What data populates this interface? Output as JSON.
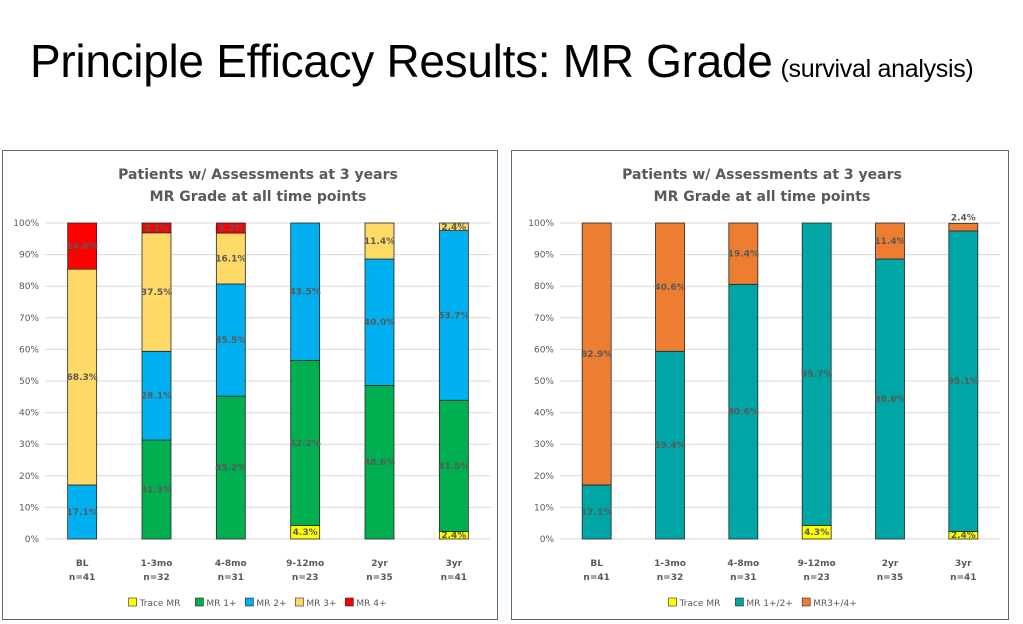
{
  "slide": {
    "title": "Principle Efficacy Results: MR Grade",
    "subtitle": "(survival analysis)"
  },
  "chart_data": [
    {
      "type": "bar",
      "stacked": true,
      "title": [
        "Patients w/ Assessments at 3 years",
        "MR Grade at all time points"
      ],
      "ylim": [
        0,
        100
      ],
      "yticks": [
        "0%",
        "10%",
        "20%",
        "30%",
        "40%",
        "50%",
        "60%",
        "70%",
        "80%",
        "90%",
        "100%"
      ],
      "categories": [
        [
          "BL",
          "n=41"
        ],
        [
          "1-3mo",
          "n=32"
        ],
        [
          "4-8mo",
          "n=31"
        ],
        [
          "9-12mo",
          "n=23"
        ],
        [
          "2yr",
          "n=35"
        ],
        [
          "3yr",
          "n=41"
        ]
      ],
      "grid": true,
      "legend_position": "bottom",
      "series": [
        {
          "name": "Trace MR",
          "color": "#ffff00",
          "values": [
            0,
            0,
            0,
            4.3,
            0,
            2.4
          ],
          "labels": [
            "",
            "",
            "",
            "4.3%",
            "",
            "2.4%"
          ]
        },
        {
          "name": "MR 1+",
          "color": "#00b050",
          "values": [
            0,
            31.3,
            45.2,
            52.2,
            48.6,
            41.5
          ],
          "labels": [
            "",
            "31.3%",
            "45.2%",
            "52.2%",
            "48.6%",
            "41.5%"
          ]
        },
        {
          "name": "MR 2+",
          "color": "#00b0f0",
          "values": [
            17.1,
            28.1,
            35.5,
            43.5,
            40.0,
            53.7
          ],
          "labels": [
            "17.1%",
            "28.1%",
            "35.5%",
            "43.5%",
            "40.0%",
            "53.7%"
          ]
        },
        {
          "name": "MR 3+",
          "color": "#ffd966",
          "values": [
            68.3,
            37.5,
            16.1,
            0,
            11.4,
            2.4
          ],
          "labels": [
            "68.3%",
            "37.5%",
            "16.1%",
            "",
            "11.4%",
            "2.4%"
          ]
        },
        {
          "name": "MR 4+",
          "color": "#ff0000",
          "values": [
            14.6,
            3.1,
            3.2,
            0,
            0,
            0
          ],
          "labels": [
            "14.6%",
            "3.1%",
            "3.2%",
            "",
            "",
            ""
          ]
        }
      ]
    },
    {
      "type": "bar",
      "stacked": true,
      "title": [
        "Patients w/ Assessments at 3 years",
        "MR Grade at all time points"
      ],
      "ylim": [
        0,
        100
      ],
      "yticks": [
        "0%",
        "10%",
        "20%",
        "30%",
        "40%",
        "50%",
        "60%",
        "70%",
        "80%",
        "90%",
        "100%"
      ],
      "categories": [
        [
          "BL",
          "n=41"
        ],
        [
          "1-3mo",
          "n=32"
        ],
        [
          "4-8mo",
          "n=31"
        ],
        [
          "9-12mo",
          "n=23"
        ],
        [
          "2yr",
          "n=35"
        ],
        [
          "3yr",
          "n=41"
        ]
      ],
      "grid": true,
      "legend_position": "bottom",
      "series": [
        {
          "name": "Trace MR",
          "color": "#ffff00",
          "values": [
            0,
            0,
            0,
            4.3,
            0,
            2.4
          ],
          "labels": [
            "",
            "",
            "",
            "4.3%",
            "",
            "2.4%"
          ]
        },
        {
          "name": "MR 1+/2+",
          "color": "#00a6a6",
          "values": [
            17.1,
            59.4,
            80.6,
            95.7,
            88.6,
            95.1
          ],
          "labels": [
            "17.1%",
            "59.4%",
            "80.6%",
            "95.7%",
            "88.6%",
            "95.1%"
          ]
        },
        {
          "name": "MR3+/4+",
          "color": "#ed7d31",
          "values": [
            82.9,
            40.6,
            19.4,
            0,
            11.4,
            2.4
          ],
          "labels": [
            "82.9%",
            "40.6%",
            "19.4%",
            "",
            "11.4%",
            "2.4%"
          ]
        }
      ]
    }
  ]
}
